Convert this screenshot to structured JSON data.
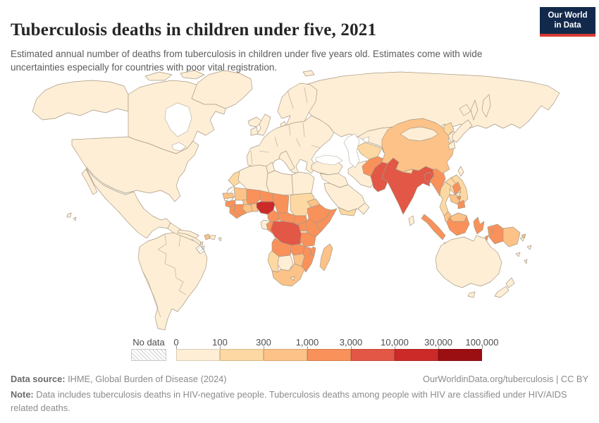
{
  "header": {
    "title": "Tuberculosis deaths in children under five, 2021",
    "subtitle": "Estimated annual number of deaths from tuberculosis in children under five years old. Estimates come with wide uncertainties especially for countries with poor vital registration.",
    "logo": {
      "line1": "Our World",
      "line2": "in Data",
      "bg_color": "#12294b",
      "accent_color": "#d93a32"
    }
  },
  "legend": {
    "no_data_label": "No data",
    "ticks": [
      "0",
      "100",
      "300",
      "1,000",
      "3,000",
      "10,000",
      "30,000",
      "100,000"
    ],
    "bin_colors": [
      "#fdeed5",
      "#fdd8a2",
      "#fcc287",
      "#f9915a",
      "#e25745",
      "#cb2a28",
      "#9b0e12"
    ],
    "stroke_color": "#a89a85"
  },
  "footer": {
    "source_label": "Data source:",
    "source_text": " IHME, Global Burden of Disease (2024)",
    "credit_text": "OurWorldinData.org/tuberculosis | CC BY",
    "note_label": "Note:",
    "note_text": " Data includes tuberculosis deaths in HIV-negative people. Tuberculosis deaths among people with HIV are classified under HIV/AIDS related deaths."
  },
  "chart_data": {
    "type": "choropleth",
    "title": "Tuberculosis deaths in children under five, 2021",
    "year": "2021",
    "unit": "estimated annual deaths",
    "legend_position": "bottom",
    "bins": [
      "0–100",
      "100–300",
      "300–1,000",
      "1,000–3,000",
      "3,000–10,000",
      "10,000–30,000",
      "30,000–100,000"
    ],
    "bin_colors": [
      "#fdeed5",
      "#fdd8a2",
      "#fcc287",
      "#f9915a",
      "#e25745",
      "#cb2a28",
      "#9b0e12"
    ],
    "no_data_regions": [
      "western-sahara",
      "french-guiana"
    ],
    "regions": [
      {
        "name": "russia",
        "bin": 1
      },
      {
        "name": "svalbard",
        "bin": 1
      },
      {
        "name": "scandinavia",
        "bin": 1
      },
      {
        "name": "iceland",
        "bin": 1
      },
      {
        "name": "uk",
        "bin": 1
      },
      {
        "name": "ireland",
        "bin": 1
      },
      {
        "name": "europe",
        "bin": 1
      },
      {
        "name": "italy",
        "bin": 1
      },
      {
        "name": "turkey",
        "bin": 1
      },
      {
        "name": "kazakhstan",
        "bin": 1
      },
      {
        "name": "uzbekistan-turkmenistan",
        "bin": 2
      },
      {
        "name": "kyrgyzstan-tajikistan",
        "bin": 2
      },
      {
        "name": "levant-iraq",
        "bin": 1
      },
      {
        "name": "saudi-arabia",
        "bin": 1
      },
      {
        "name": "yemen",
        "bin": 2
      },
      {
        "name": "oman",
        "bin": 1
      },
      {
        "name": "iran",
        "bin": 1
      },
      {
        "name": "afghanistan",
        "bin": 4
      },
      {
        "name": "pakistan",
        "bin": 5
      },
      {
        "name": "india",
        "bin": 5
      },
      {
        "name": "nepal",
        "bin": 2
      },
      {
        "name": "bangladesh",
        "bin": 5
      },
      {
        "name": "sri-lanka",
        "bin": 1
      },
      {
        "name": "myanmar",
        "bin": 4
      },
      {
        "name": "thailand",
        "bin": 2
      },
      {
        "name": "laos",
        "bin": 2
      },
      {
        "name": "vietnam",
        "bin": 2
      },
      {
        "name": "cambodia",
        "bin": 3
      },
      {
        "name": "malaysia-peninsula",
        "bin": 3
      },
      {
        "name": "china",
        "bin": 3
      },
      {
        "name": "mongolia",
        "bin": 1
      },
      {
        "name": "north-korea",
        "bin": 2
      },
      {
        "name": "south-korea",
        "bin": 1
      },
      {
        "name": "japan",
        "bin": 1
      },
      {
        "name": "taiwan",
        "bin": 1
      },
      {
        "name": "philippines",
        "bin": 4
      },
      {
        "name": "indonesia",
        "bin": 4
      },
      {
        "name": "malaysia-borneo",
        "bin": 3
      },
      {
        "name": "papua-new-guinea",
        "bin": 3
      },
      {
        "name": "pacific-islands",
        "bin": 1
      },
      {
        "name": "australia",
        "bin": 1
      },
      {
        "name": "new-zealand",
        "bin": 1
      },
      {
        "name": "alaska",
        "bin": 1
      },
      {
        "name": "canada",
        "bin": 1
      },
      {
        "name": "canada-arctic-islands",
        "bin": 1
      },
      {
        "name": "greenland",
        "bin": 1
      },
      {
        "name": "usa",
        "bin": 1
      },
      {
        "name": "hawaii",
        "bin": 1
      },
      {
        "name": "mexico",
        "bin": 1
      },
      {
        "name": "central-america",
        "bin": 1
      },
      {
        "name": "cuba",
        "bin": 1
      },
      {
        "name": "jamaica",
        "bin": 1
      },
      {
        "name": "haiti",
        "bin": 3
      },
      {
        "name": "dominican-republic",
        "bin": 1
      },
      {
        "name": "lesser-antilles",
        "bin": 1
      },
      {
        "name": "south-america",
        "bin": 1
      },
      {
        "name": "french-guiana",
        "bin": 0
      },
      {
        "name": "morocco",
        "bin": 2
      },
      {
        "name": "western-sahara",
        "bin": 0
      },
      {
        "name": "algeria",
        "bin": 1
      },
      {
        "name": "tunisia",
        "bin": 1
      },
      {
        "name": "libya",
        "bin": 1
      },
      {
        "name": "egypt",
        "bin": 1
      },
      {
        "name": "mauritania",
        "bin": 3
      },
      {
        "name": "senegal",
        "bin": 3
      },
      {
        "name": "guinea",
        "bin": 4
      },
      {
        "name": "sierra-leone-liberia",
        "bin": 4
      },
      {
        "name": "cote-divoire",
        "bin": 4
      },
      {
        "name": "ghana",
        "bin": 3
      },
      {
        "name": "burkina-faso",
        "bin": 3
      },
      {
        "name": "benin-togo",
        "bin": 3
      },
      {
        "name": "mali",
        "bin": 4
      },
      {
        "name": "niger",
        "bin": 4
      },
      {
        "name": "chad",
        "bin": 4
      },
      {
        "name": "sudan",
        "bin": 2
      },
      {
        "name": "eritrea",
        "bin": 3
      },
      {
        "name": "ethiopia",
        "bin": 4
      },
      {
        "name": "somalia",
        "bin": 4
      },
      {
        "name": "south-sudan",
        "bin": 4
      },
      {
        "name": "nigeria",
        "bin": 6
      },
      {
        "name": "cameroon",
        "bin": 4
      },
      {
        "name": "central-african-republic",
        "bin": 4
      },
      {
        "name": "uganda",
        "bin": 4
      },
      {
        "name": "kenya",
        "bin": 4
      },
      {
        "name": "gabon",
        "bin": 1
      },
      {
        "name": "congo",
        "bin": 4
      },
      {
        "name": "drc",
        "bin": 5
      },
      {
        "name": "tanzania",
        "bin": 4
      },
      {
        "name": "angola",
        "bin": 4
      },
      {
        "name": "zambia",
        "bin": 4
      },
      {
        "name": "malawi",
        "bin": 4
      },
      {
        "name": "mozambique",
        "bin": 4
      },
      {
        "name": "zimbabwe",
        "bin": 3
      },
      {
        "name": "namibia",
        "bin": 2
      },
      {
        "name": "botswana",
        "bin": 1
      },
      {
        "name": "south-africa",
        "bin": 3
      },
      {
        "name": "lesotho",
        "bin": 1
      },
      {
        "name": "madagascar",
        "bin": 3
      }
    ]
  }
}
